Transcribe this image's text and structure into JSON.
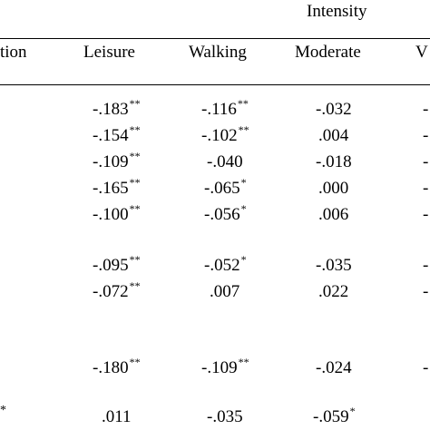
{
  "group_header": "Intensity",
  "columns": {
    "first": "tion",
    "leisure": "Leisure",
    "walking": "Walking",
    "moderate": "Moderate",
    "vigorous": "V"
  },
  "rows": [
    {
      "stub": "",
      "leisure": "-.183",
      "leisure_sig": "**",
      "walking": "-.116",
      "walking_sig": "**",
      "moderate": "-.032",
      "moderate_sig": "",
      "vigorous": "-"
    },
    {
      "stub": "",
      "leisure": "-.154",
      "leisure_sig": "**",
      "walking": "-.102",
      "walking_sig": "**",
      "moderate": ".004",
      "moderate_sig": "",
      "vigorous": "-"
    },
    {
      "stub": "",
      "leisure": "-.109",
      "leisure_sig": "**",
      "walking": "-.040",
      "walking_sig": "",
      "moderate": "-.018",
      "moderate_sig": "",
      "vigorous": "-"
    },
    {
      "stub": "",
      "leisure": "-.165",
      "leisure_sig": "**",
      "walking": "-.065",
      "walking_sig": "*",
      "moderate": ".000",
      "moderate_sig": "",
      "vigorous": "-"
    },
    {
      "stub": "",
      "leisure": "-.100",
      "leisure_sig": "**",
      "walking": "-.056",
      "walking_sig": "*",
      "moderate": ".006",
      "moderate_sig": "",
      "vigorous": "-"
    },
    {
      "stub": "",
      "leisure": "-.095",
      "leisure_sig": "**",
      "walking": "-.052",
      "walking_sig": "*",
      "moderate": "-.035",
      "moderate_sig": "",
      "vigorous": "-"
    },
    {
      "stub": "",
      "leisure": "-.072",
      "leisure_sig": "**",
      "walking": ".007",
      "walking_sig": "",
      "moderate": ".022",
      "moderate_sig": "",
      "vigorous": "-"
    },
    {
      "stub": "",
      "leisure": "-.180",
      "leisure_sig": "**",
      "walking": "-.109",
      "walking_sig": "**",
      "moderate": "-.024",
      "moderate_sig": "",
      "vigorous": "-"
    },
    {
      "stub": "*",
      "leisure": ".011",
      "leisure_sig": "",
      "walking": "-.035",
      "walking_sig": "",
      "moderate": "-.059",
      "moderate_sig": "*",
      "vigorous": ""
    }
  ]
}
